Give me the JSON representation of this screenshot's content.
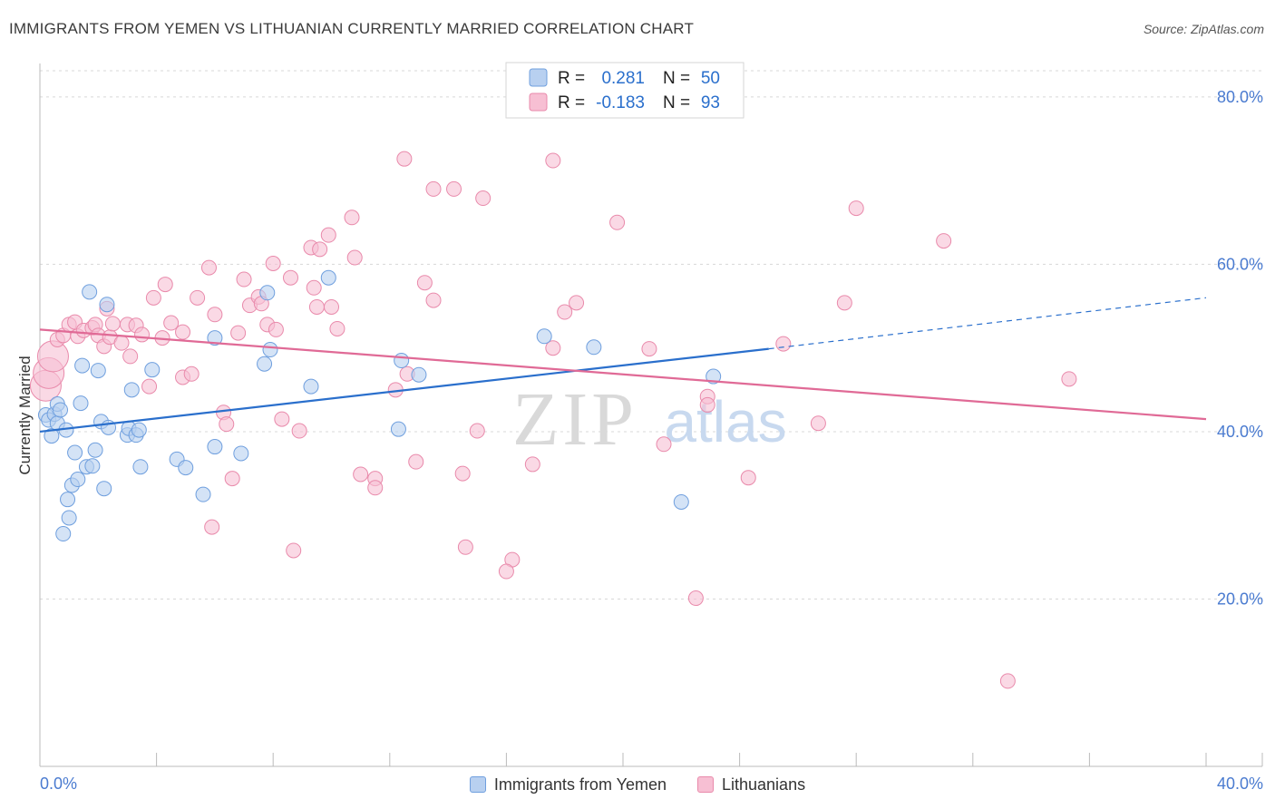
{
  "header": {
    "title": "IMMIGRANTS FROM YEMEN VS LITHUANIAN CURRENTLY MARRIED CORRELATION CHART",
    "source": "Source: ZipAtlas.com"
  },
  "watermark": {
    "zip": "ZIP",
    "atlas": "atlas"
  },
  "legend_top": [
    {
      "r_label": "R =",
      "r_value": "0.281",
      "n_label": "N =",
      "n_value": "50"
    },
    {
      "r_label": "R =",
      "r_value": "-0.183",
      "n_label": "N =",
      "n_value": "93"
    }
  ],
  "legend_bottom": [
    {
      "label": "Immigrants from Yemen"
    },
    {
      "label": "Lithuanians"
    }
  ],
  "colors": {
    "yemen_fill": "#b8d0f0",
    "yemen_stroke": "#6f9fde",
    "yemen_line": "#2a6fcc",
    "lith_fill": "#f7bfd3",
    "lith_stroke": "#e98aab",
    "lith_line": "#e06a96",
    "tick_label": "#4a7bd0",
    "grid": "#d8d8d8"
  },
  "chart_data": {
    "type": "scatter",
    "title": "IMMIGRANTS FROM YEMEN VS LITHUANIAN CURRENTLY MARRIED CORRELATION CHART",
    "xlabel": "",
    "ylabel": "Currently Married",
    "xlim": [
      0,
      40
    ],
    "ylim": [
      0,
      84
    ],
    "x_tick_labels": [
      {
        "value": 0,
        "label": "0.0%"
      },
      {
        "value": 40,
        "label": "40.0%"
      }
    ],
    "y_tick_labels": [
      {
        "value": 20,
        "label": "20.0%"
      },
      {
        "value": 40,
        "label": "40.0%"
      },
      {
        "value": 60,
        "label": "60.0%"
      },
      {
        "value": 80,
        "label": "80.0%"
      }
    ],
    "grid": true,
    "series": [
      {
        "name": "Immigrants from Yemen",
        "r": 0.281,
        "n": 50,
        "trend": {
          "x0": 0,
          "y0": 40.0,
          "x1": 25.0,
          "y1": 49.9,
          "dash_x1": 40,
          "dash_y1": 56.0
        },
        "points": [
          [
            0.2,
            42.0
          ],
          [
            0.3,
            41.4
          ],
          [
            0.4,
            39.5
          ],
          [
            0.5,
            42.1
          ],
          [
            0.6,
            41.0
          ],
          [
            0.6,
            43.3
          ],
          [
            0.7,
            42.6
          ],
          [
            0.8,
            27.8
          ],
          [
            0.9,
            40.2
          ],
          [
            0.95,
            31.9
          ],
          [
            1.0,
            29.7
          ],
          [
            1.1,
            33.6
          ],
          [
            1.2,
            37.5
          ],
          [
            1.3,
            34.3
          ],
          [
            1.4,
            43.4
          ],
          [
            1.45,
            47.9
          ],
          [
            1.6,
            35.8
          ],
          [
            1.7,
            56.7
          ],
          [
            1.8,
            35.9
          ],
          [
            1.9,
            37.8
          ],
          [
            2.0,
            47.3
          ],
          [
            2.1,
            41.2
          ],
          [
            2.2,
            33.2
          ],
          [
            2.3,
            55.2
          ],
          [
            2.35,
            40.5
          ],
          [
            3.0,
            39.6
          ],
          [
            3.05,
            40.4
          ],
          [
            3.15,
            45.0
          ],
          [
            3.3,
            39.6
          ],
          [
            3.4,
            40.2
          ],
          [
            3.45,
            35.8
          ],
          [
            3.85,
            47.4
          ],
          [
            4.7,
            36.7
          ],
          [
            5.0,
            35.7
          ],
          [
            5.6,
            32.5
          ],
          [
            6.0,
            38.2
          ],
          [
            6.0,
            51.2
          ],
          [
            6.9,
            37.4
          ],
          [
            7.7,
            48.1
          ],
          [
            7.8,
            56.6
          ],
          [
            7.9,
            49.8
          ],
          [
            9.3,
            45.4
          ],
          [
            9.9,
            58.4
          ],
          [
            12.3,
            40.3
          ],
          [
            12.4,
            48.5
          ],
          [
            13.0,
            46.8
          ],
          [
            17.3,
            51.4
          ],
          [
            19.0,
            50.1
          ],
          [
            22.0,
            31.6
          ],
          [
            23.1,
            46.6
          ]
        ]
      },
      {
        "name": "Lithuanians",
        "r": -0.183,
        "n": 93,
        "trend": {
          "x0": 0,
          "y0": 52.2,
          "x1": 40,
          "y1": 41.5
        },
        "points": [
          [
            0.2,
            45.5
          ],
          [
            0.3,
            47.0
          ],
          [
            0.45,
            49.0
          ],
          [
            0.6,
            51.0
          ],
          [
            0.8,
            51.5
          ],
          [
            1.0,
            52.8
          ],
          [
            1.2,
            53.1
          ],
          [
            1.3,
            51.4
          ],
          [
            1.5,
            52.1
          ],
          [
            1.8,
            52.4
          ],
          [
            1.9,
            52.8
          ],
          [
            2.0,
            51.5
          ],
          [
            2.2,
            50.2
          ],
          [
            2.3,
            54.7
          ],
          [
            2.4,
            51.3
          ],
          [
            2.5,
            52.9
          ],
          [
            2.8,
            50.6
          ],
          [
            3.0,
            52.8
          ],
          [
            3.1,
            49.0
          ],
          [
            3.3,
            52.7
          ],
          [
            3.5,
            51.6
          ],
          [
            3.75,
            45.4
          ],
          [
            3.9,
            56.0
          ],
          [
            4.2,
            51.2
          ],
          [
            4.3,
            57.6
          ],
          [
            4.5,
            53.0
          ],
          [
            4.9,
            51.9
          ],
          [
            4.9,
            46.5
          ],
          [
            5.2,
            46.9
          ],
          [
            5.4,
            56.0
          ],
          [
            5.8,
            59.6
          ],
          [
            5.9,
            28.6
          ],
          [
            6.0,
            54.0
          ],
          [
            6.3,
            42.3
          ],
          [
            6.4,
            40.9
          ],
          [
            6.6,
            34.4
          ],
          [
            6.8,
            51.8
          ],
          [
            7.0,
            58.2
          ],
          [
            7.2,
            55.1
          ],
          [
            7.5,
            56.1
          ],
          [
            7.8,
            52.8
          ],
          [
            7.6,
            55.3
          ],
          [
            8.0,
            60.1
          ],
          [
            8.1,
            52.2
          ],
          [
            8.3,
            41.5
          ],
          [
            8.6,
            58.4
          ],
          [
            8.7,
            25.8
          ],
          [
            8.9,
            40.1
          ],
          [
            9.3,
            62.0
          ],
          [
            9.4,
            57.2
          ],
          [
            9.5,
            54.9
          ],
          [
            9.6,
            61.8
          ],
          [
            9.9,
            63.5
          ],
          [
            10.0,
            54.9
          ],
          [
            10.2,
            52.3
          ],
          [
            10.7,
            65.6
          ],
          [
            10.8,
            60.8
          ],
          [
            11.0,
            34.9
          ],
          [
            11.5,
            34.4
          ],
          [
            11.5,
            33.3
          ],
          [
            12.2,
            45.0
          ],
          [
            12.6,
            46.9
          ],
          [
            12.9,
            36.4
          ],
          [
            12.5,
            72.6
          ],
          [
            13.2,
            57.8
          ],
          [
            13.5,
            55.7
          ],
          [
            13.5,
            69.0
          ],
          [
            14.2,
            69.0
          ],
          [
            14.5,
            35.0
          ],
          [
            14.6,
            26.2
          ],
          [
            15.0,
            40.1
          ],
          [
            15.2,
            67.9
          ],
          [
            16.2,
            24.7
          ],
          [
            16.0,
            23.3
          ],
          [
            16.9,
            36.1
          ],
          [
            17.6,
            50.0
          ],
          [
            17.6,
            72.4
          ],
          [
            18.0,
            54.3
          ],
          [
            18.4,
            55.4
          ],
          [
            19.8,
            65.0
          ],
          [
            20.9,
            49.9
          ],
          [
            21.4,
            38.5
          ],
          [
            22.5,
            20.1
          ],
          [
            22.9,
            44.2
          ],
          [
            22.9,
            43.2
          ],
          [
            24.3,
            34.5
          ],
          [
            25.5,
            50.5
          ],
          [
            26.7,
            41.0
          ],
          [
            27.6,
            55.4
          ],
          [
            28.0,
            66.7
          ],
          [
            31.0,
            62.8
          ],
          [
            33.2,
            10.2
          ],
          [
            35.3,
            46.3
          ]
        ]
      }
    ]
  }
}
